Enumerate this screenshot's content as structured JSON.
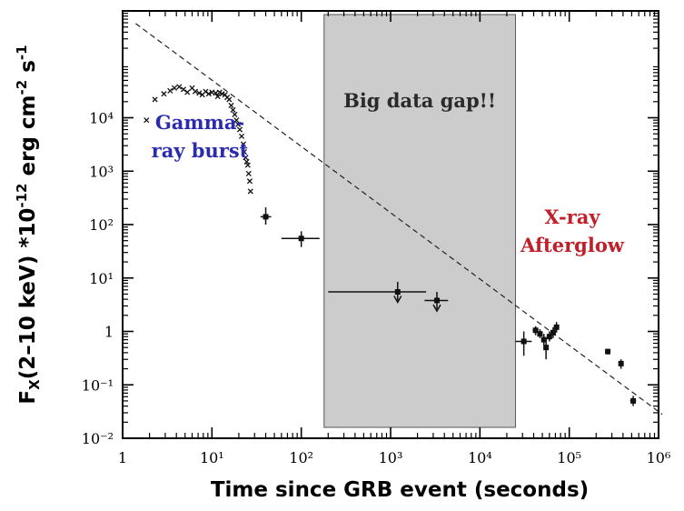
{
  "chart_data": {
    "type": "scatter",
    "xlabel": "Time since GRB event (seconds)",
    "ylabel": "F_X(2–10 keV) *10^-12 erg cm^-2 s^-1",
    "x_scale": "log",
    "y_scale": "log",
    "xlim": [
      1,
      1000000
    ],
    "ylim": [
      0.01,
      1000000
    ],
    "grid": false,
    "x_ticks": [
      {
        "value": 1,
        "label": "1"
      },
      {
        "value": 10,
        "label": "10¹"
      },
      {
        "value": 100,
        "label": "10²"
      },
      {
        "value": 1000,
        "label": "10³"
      },
      {
        "value": 10000,
        "label": "10⁴"
      },
      {
        "value": 100000,
        "label": "10⁵"
      },
      {
        "value": 1000000,
        "label": "10⁶"
      }
    ],
    "y_ticks": [
      {
        "value": 0.01,
        "label": "10⁻²"
      },
      {
        "value": 0.1,
        "label": "10⁻¹"
      },
      {
        "value": 1,
        "label": "1"
      },
      {
        "value": 10,
        "label": "10¹"
      },
      {
        "value": 100,
        "label": "10²"
      },
      {
        "value": 1000,
        "label": "10³"
      },
      {
        "value": 10000,
        "label": "10⁴"
      }
    ],
    "shaded_region": {
      "x_range": [
        180,
        25000
      ],
      "label": "Big data gap!!",
      "color": "#cccccc"
    },
    "annotations": [
      {
        "lines": [
          "Gamma-",
          "ray burst"
        ],
        "color": "#2b2bb0"
      },
      {
        "lines": [
          "X-ray",
          "Afterglow"
        ],
        "color": "#c0202a"
      }
    ],
    "fit_line": {
      "style": "dashed",
      "points": [
        [
          1.4,
          580000
        ],
        [
          1100000,
          0.028
        ]
      ]
    },
    "gamma_ray_points": [
      [
        1.85,
        9000
      ],
      [
        2.3,
        22000
      ],
      [
        2.9,
        28000
      ],
      [
        3.4,
        32000
      ],
      [
        3.8,
        36000
      ],
      [
        4.3,
        38000
      ],
      [
        4.8,
        34000
      ],
      [
        5.3,
        30000
      ],
      [
        6.0,
        36000
      ],
      [
        6.5,
        31000
      ],
      [
        7.2,
        29000
      ],
      [
        7.8,
        27000
      ],
      [
        8.5,
        31000
      ],
      [
        9.2,
        28000
      ],
      [
        10.0,
        30000
      ],
      [
        11.0,
        29000
      ],
      [
        11.6,
        25000
      ],
      [
        12.2,
        30000
      ],
      [
        13.0,
        28000
      ],
      [
        14.0,
        27000
      ],
      [
        14.8,
        24000
      ],
      [
        15.6,
        22000
      ],
      [
        16.4,
        17000
      ],
      [
        17.2,
        14000
      ],
      [
        18.0,
        11500
      ],
      [
        18.8,
        9000
      ],
      [
        19.6,
        7500
      ],
      [
        20.5,
        6000
      ],
      [
        21.5,
        4500
      ],
      [
        22.5,
        3200
      ],
      [
        23.0,
        2300
      ],
      [
        23.8,
        1800
      ],
      [
        24.5,
        1500
      ],
      [
        25.2,
        1300
      ],
      [
        25.8,
        900
      ],
      [
        26.5,
        650
      ],
      [
        27.0,
        420
      ]
    ],
    "xray_points": [
      {
        "x": 40,
        "y": 140,
        "x_err": [
          35,
          46
        ],
        "y_err": [
          100,
          210
        ]
      },
      {
        "x": 100,
        "y": 55,
        "x_err": [
          60,
          160
        ],
        "y_err": [
          38,
          75
        ]
      },
      {
        "x": 1200,
        "y": 5.5,
        "x_err": [
          200,
          2500
        ],
        "y_err": [
          3.8,
          8.5
        ],
        "upper_limit": true
      },
      {
        "x": 3300,
        "y": 3.8,
        "x_err": [
          2400,
          4400
        ],
        "y_err": [
          2.6,
          5.5
        ],
        "upper_limit": true
      },
      {
        "x": 31000,
        "y": 0.65,
        "x_err": [
          25000,
          38000
        ],
        "y_err": [
          0.35,
          1.0
        ]
      },
      {
        "x": 42000,
        "y": 1.05,
        "x_err": [
          39000,
          45000
        ],
        "y_err": [
          0.85,
          1.25
        ]
      },
      {
        "x": 47000,
        "y": 0.9,
        "x_err": [
          45000,
          49000
        ],
        "y_err": [
          0.75,
          1.1
        ]
      },
      {
        "x": 52000,
        "y": 0.7,
        "x_err": [
          50000,
          54000
        ],
        "y_err": [
          0.55,
          0.9
        ]
      },
      {
        "x": 55000,
        "y": 0.5,
        "x_err": [
          53000,
          57000
        ],
        "y_err": [
          0.3,
          0.75
        ]
      },
      {
        "x": 60000,
        "y": 0.8,
        "x_err": [
          58000,
          62000
        ],
        "y_err": [
          0.65,
          1.0
        ]
      },
      {
        "x": 66000,
        "y": 0.95,
        "x_err": [
          63000,
          69000
        ],
        "y_err": [
          0.75,
          1.2
        ]
      },
      {
        "x": 72000,
        "y": 1.2,
        "x_err": [
          69000,
          75000
        ],
        "y_err": [
          0.95,
          1.5
        ]
      },
      {
        "x": 270000,
        "y": 0.42,
        "x_err": [
          255000,
          285000
        ],
        "y_err": [
          0.37,
          0.47
        ]
      },
      {
        "x": 380000,
        "y": 0.25,
        "x_err": [
          360000,
          400000
        ],
        "y_err": [
          0.2,
          0.3
        ]
      },
      {
        "x": 520000,
        "y": 0.05,
        "x_err": [
          480000,
          560000
        ],
        "y_err": [
          0.04,
          0.062
        ]
      }
    ]
  }
}
